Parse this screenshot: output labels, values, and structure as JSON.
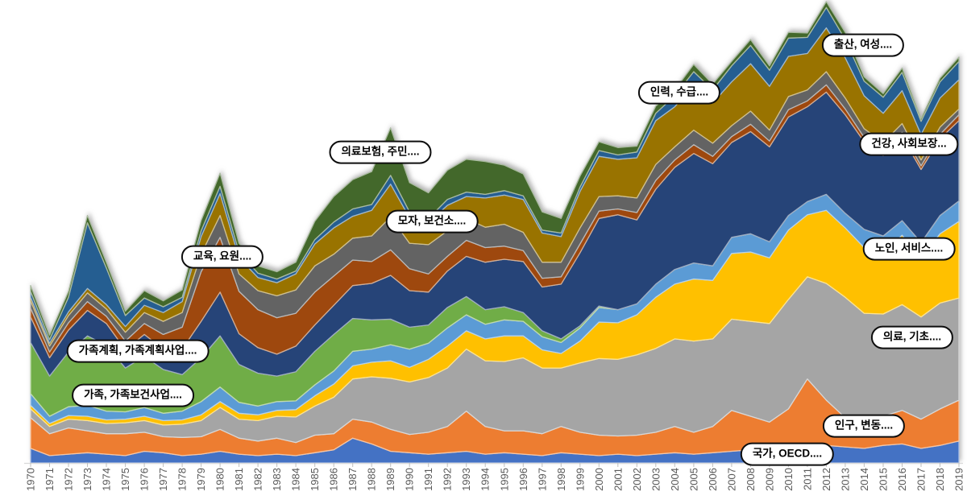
{
  "background": "#FFFFFF",
  "chart_data": {
    "type": "area",
    "stacked": true,
    "title": "",
    "xlabel": "",
    "ylabel": "",
    "legend_position": "none",
    "grid": false,
    "x": [
      1970,
      1971,
      1972,
      1973,
      1974,
      1975,
      1976,
      1977,
      1978,
      1979,
      1980,
      1981,
      1982,
      1983,
      1984,
      1985,
      1986,
      1987,
      1988,
      1989,
      1990,
      1991,
      1992,
      1993,
      1994,
      1995,
      1996,
      1997,
      1998,
      1999,
      2000,
      2001,
      2002,
      2003,
      2004,
      2005,
      2006,
      2007,
      2008,
      2009,
      2010,
      2011,
      2012,
      2013,
      2014,
      2015,
      2016,
      2017,
      2018,
      2019
    ],
    "axis": {
      "line_color": "#D9D9D9",
      "tick_color": "#BFBFBF",
      "label_color": "#595959"
    },
    "series": [
      {
        "name": "국가, OECD....",
        "color": "#4472C4",
        "values": [
          20,
          10,
          12,
          14,
          12,
          10,
          16,
          14,
          10,
          12,
          16,
          12,
          10,
          12,
          10,
          14,
          18,
          34,
          26,
          16,
          14,
          12,
          14,
          16,
          12,
          14,
          12,
          10,
          14,
          12,
          10,
          12,
          10,
          12,
          14,
          12,
          14,
          16,
          18,
          16,
          22,
          20,
          24,
          22,
          20,
          24,
          26,
          20,
          24,
          30
        ]
      },
      {
        "name": "인구, 변동....",
        "color": "#ED7D31",
        "values": [
          42,
          30,
          36,
          30,
          28,
          30,
          26,
          22,
          25,
          24,
          30,
          22,
          20,
          22,
          18,
          24,
          22,
          26,
          30,
          30,
          25,
          30,
          36,
          55,
          38,
          30,
          32,
          30,
          36,
          30,
          28,
          25,
          28,
          30,
          36,
          30,
          36,
          56,
          46,
          40,
          52,
          95,
          62,
          40,
          35,
          40,
          46,
          40,
          50,
          56
        ]
      },
      {
        "name": "의료, 기초....",
        "color": "#A5A5A5",
        "values": [
          12,
          10,
          12,
          14,
          14,
          15,
          16,
          16,
          18,
          22,
          30,
          26,
          28,
          30,
          35,
          40,
          50,
          55,
          62,
          70,
          72,
          75,
          80,
          85,
          90,
          95,
          100,
          90,
          80,
          95,
          105,
          105,
          110,
          115,
          120,
          125,
          120,
          125,
          130,
          135,
          150,
          140,
          160,
          165,
          150,
          140,
          145,
          140,
          145,
          140
        ]
      },
      {
        "name": "노인, 서비스....",
        "color": "#FFC000",
        "values": [
          5,
          4,
          5,
          6,
          5,
          5,
          6,
          6,
          6,
          8,
          8,
          8,
          8,
          8,
          10,
          14,
          18,
          18,
          20,
          24,
          20,
          25,
          30,
          25,
          30,
          35,
          30,
          25,
          20,
          30,
          50,
          50,
          55,
          70,
          75,
          85,
          80,
          90,
          95,
          90,
          95,
          85,
          100,
          95,
          90,
          85,
          95,
          80,
          95,
          105
        ]
      },
      {
        "name": "가족, 가족보건사업....",
        "color": "#5B9BD5",
        "values": [
          16,
          10,
          12,
          15,
          12,
          10,
          12,
          10,
          12,
          18,
          20,
          15,
          12,
          12,
          12,
          15,
          18,
          20,
          18,
          22,
          25,
          22,
          25,
          22,
          20,
          22,
          20,
          18,
          15,
          18,
          20,
          18,
          15,
          18,
          20,
          22,
          20,
          22,
          25,
          22,
          20,
          18,
          22,
          20,
          25,
          22,
          20,
          22,
          25,
          28
        ]
      },
      {
        "name": "가족계획, 가족계획사업....",
        "color": "#70AD47",
        "values": [
          70,
          55,
          75,
          95,
          90,
          60,
          70,
          60,
          50,
          60,
          70,
          52,
          45,
          35,
          40,
          46,
          50,
          45,
          40,
          35,
          30,
          25,
          28,
          25,
          20,
          18,
          12,
          8,
          5,
          3,
          2,
          0,
          0,
          0,
          0,
          0,
          0,
          0,
          0,
          0,
          0,
          0,
          0,
          0,
          0,
          0,
          0,
          0,
          0,
          0
        ]
      },
      {
        "name": "건강, 사회보장...",
        "color": "#264478",
        "values": [
          35,
          25,
          30,
          35,
          30,
          25,
          30,
          28,
          35,
          50,
          60,
          42,
          35,
          30,
          35,
          36,
          40,
          45,
          50,
          60,
          50,
          45,
          50,
          55,
          65,
          65,
          70,
          60,
          75,
          100,
          120,
          130,
          115,
          130,
          140,
          150,
          140,
          130,
          140,
          130,
          135,
          130,
          140,
          135,
          120,
          110,
          115,
          100,
          105,
          110
        ]
      },
      {
        "name": "교육, 요원....",
        "color": "#9E480E",
        "values": [
          12,
          8,
          10,
          12,
          10,
          12,
          15,
          20,
          30,
          68,
          75,
          58,
          52,
          50,
          45,
          45,
          40,
          35,
          30,
          35,
          30,
          25,
          20,
          22,
          20,
          18,
          15,
          12,
          10,
          12,
          10,
          8,
          10,
          12,
          10,
          12,
          10,
          8,
          10,
          8,
          10,
          8,
          10,
          8,
          6,
          8,
          6,
          5,
          6,
          8
        ]
      },
      {
        "name": "모자, 보건소....",
        "color": "#636363",
        "values": [
          10,
          8,
          10,
          12,
          10,
          12,
          15,
          18,
          20,
          24,
          30,
          24,
          26,
          30,
          32,
          36,
          30,
          30,
          35,
          45,
          35,
          40,
          35,
          30,
          28,
          30,
          25,
          22,
          20,
          22,
          20,
          18,
          20,
          22,
          18,
          20,
          18,
          15,
          18,
          15,
          18,
          15,
          18,
          15,
          12,
          10,
          12,
          8,
          10,
          8
        ]
      },
      {
        "name": "의료보험, 주민....",
        "color": "#997300",
        "values": [
          5,
          4,
          5,
          6,
          6,
          8,
          10,
          12,
          15,
          24,
          30,
          22,
          18,
          18,
          22,
          30,
          36,
          30,
          35,
          45,
          35,
          30,
          35,
          30,
          40,
          40,
          45,
          40,
          35,
          50,
          55,
          50,
          55,
          60,
          55,
          60,
          55,
          60,
          65,
          60,
          55,
          50,
          60,
          55,
          45,
          40,
          45,
          35,
          40,
          40
        ]
      },
      {
        "name": "인력, 수급....",
        "color": "#255E91",
        "values": [
          8,
          5,
          20,
          90,
          50,
          15,
          10,
          8,
          6,
          8,
          10,
          8,
          6,
          5,
          4,
          6,
          8,
          10,
          8,
          12,
          8,
          6,
          8,
          6,
          5,
          6,
          5,
          4,
          5,
          6,
          8,
          6,
          8,
          10,
          15,
          20,
          18,
          22,
          25,
          22,
          25,
          22,
          28,
          25,
          20,
          22,
          25,
          18,
          22,
          25
        ]
      },
      {
        "name": "출산, 여성....",
        "color": "#43682B",
        "values": [
          8,
          6,
          8,
          10,
          8,
          6,
          10,
          8,
          10,
          14,
          18,
          12,
          10,
          10,
          12,
          25,
          35,
          40,
          45,
          65,
          40,
          35,
          40,
          45,
          45,
          35,
          30,
          25,
          20,
          15,
          12,
          10,
          8,
          10,
          8,
          10,
          8,
          6,
          8,
          6,
          8,
          6,
          8,
          10,
          6,
          5,
          6,
          4,
          5,
          6
        ]
      }
    ],
    "callouts": [
      {
        "label": "국가, OECD....",
        "series": "국가, OECD...."
      },
      {
        "label": "인구, 변동....",
        "series": "인구, 변동...."
      },
      {
        "label": "의료, 기초....",
        "series": "의료, 기초...."
      },
      {
        "label": "노인, 서비스....",
        "series": "노인, 서비스...."
      },
      {
        "label": "가족, 가족보건사업....",
        "series": "가족, 가족보건사업...."
      },
      {
        "label": "가족계획, 가족계획사업....",
        "series": "가족계획, 가족계획사업...."
      },
      {
        "label": "건강, 사회보장...",
        "series": "건강, 사회보장..."
      },
      {
        "label": "교육, 요원....",
        "series": "교육, 요원...."
      },
      {
        "label": "모자, 보건소....",
        "series": "모자, 보건소...."
      },
      {
        "label": "의료보험, 주민....",
        "series": "의료보험, 주민...."
      },
      {
        "label": "인력, 수급....",
        "series": "인력, 수급...."
      },
      {
        "label": "출산, 여성....",
        "series": "출산, 여성...."
      }
    ]
  }
}
